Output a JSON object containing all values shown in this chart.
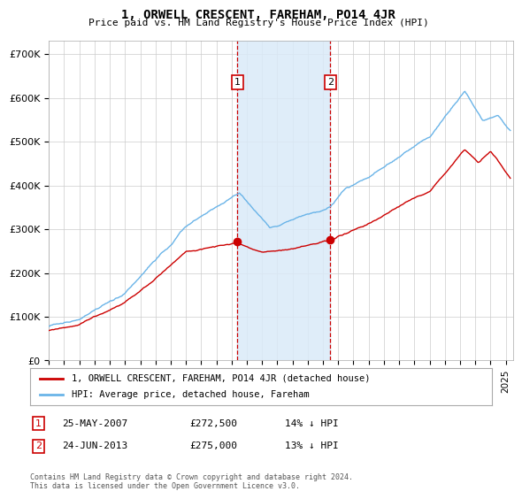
{
  "title": "1, ORWELL CRESCENT, FAREHAM, PO14 4JR",
  "subtitle": "Price paid vs. HM Land Registry's House Price Index (HPI)",
  "ylabel_ticks": [
    "£0",
    "£100K",
    "£200K",
    "£300K",
    "£400K",
    "£500K",
    "£600K",
    "£700K"
  ],
  "ytick_values": [
    0,
    100000,
    200000,
    300000,
    400000,
    500000,
    600000,
    700000
  ],
  "ylim": [
    0,
    730000
  ],
  "xlim_start": 1995.0,
  "xlim_end": 2025.5,
  "purchase1_x": 2007.39,
  "purchase1_y": 272500,
  "purchase1_label": "1",
  "purchase1_date": "25-MAY-2007",
  "purchase1_price": "£272,500",
  "purchase1_hpi": "14% ↓ HPI",
  "purchase2_x": 2013.48,
  "purchase2_y": 275000,
  "purchase2_label": "2",
  "purchase2_date": "24-JUN-2013",
  "purchase2_price": "£275,000",
  "purchase2_hpi": "13% ↓ HPI",
  "highlight_color": "#daeaf8",
  "highlight_alpha": 0.85,
  "line1_color": "#cc0000",
  "line2_color": "#6ab4e8",
  "grid_color": "#cccccc",
  "legend_label1": "1, ORWELL CRESCENT, FAREHAM, PO14 4JR (detached house)",
  "legend_label2": "HPI: Average price, detached house, Fareham",
  "footnote": "Contains HM Land Registry data © Crown copyright and database right 2024.\nThis data is licensed under the Open Government Licence v3.0.",
  "box_color": "#cc0000"
}
